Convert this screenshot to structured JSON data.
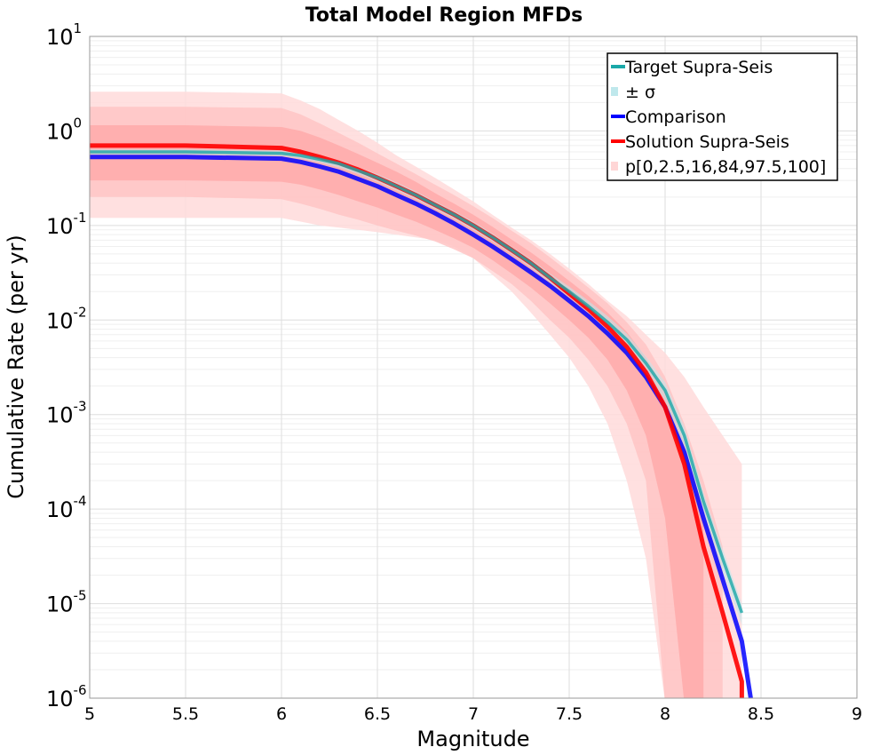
{
  "chart_data": {
    "type": "line",
    "title": "Total Model Region MFDs",
    "xlabel": "Magnitude",
    "ylabel": "Cumulative Rate (per yr)",
    "xlim": [
      5,
      9
    ],
    "ylim": [
      1e-06,
      10
    ],
    "yscale": "log",
    "grid": true,
    "legend_position": "top-right",
    "xticks": [
      "5",
      "5.5",
      "6",
      "6.5",
      "7",
      "7.5",
      "8",
      "8.5",
      "9"
    ],
    "yticks": [
      {
        "base": "10",
        "exp": "-6"
      },
      {
        "base": "10",
        "exp": "-5"
      },
      {
        "base": "10",
        "exp": "-4"
      },
      {
        "base": "10",
        "exp": "-3"
      },
      {
        "base": "10",
        "exp": "-2"
      },
      {
        "base": "10",
        "exp": "-1"
      },
      {
        "base": "10",
        "exp": "0"
      },
      {
        "base": "10",
        "exp": "1"
      }
    ],
    "legend": [
      {
        "label": "Target Supra-Seis",
        "color": "#1aa8a8",
        "kind": "line"
      },
      {
        "label": "± σ",
        "color": "#bfe8ec",
        "kind": "box"
      },
      {
        "label": "Comparison",
        "color": "#0000ff",
        "kind": "line"
      },
      {
        "label": "Solution Supra-Seis",
        "color": "#ff0000",
        "kind": "line"
      },
      {
        "label": "p[0,2.5,16,84,97.5,100]",
        "color": "#ffd6d6",
        "kind": "box"
      }
    ],
    "colors": {
      "target": "#1aa8a8",
      "sigma": "#bfe8ec",
      "comparison": "#0000ff",
      "solution": "#ff0000",
      "band_outer": "#ffdada",
      "band_mid": "#ffc4c4",
      "band_inner": "#ffaaaa",
      "grid_major": "#dedede",
      "grid_minor": "#efefef"
    },
    "series": [
      {
        "name": "Target Supra-Seis",
        "x": [
          5.0,
          5.5,
          6.0,
          6.1,
          6.2,
          6.3,
          6.4,
          6.5,
          6.6,
          6.7,
          6.8,
          6.9,
          7.0,
          7.1,
          7.2,
          7.3,
          7.4,
          7.5,
          7.6,
          7.7,
          7.8,
          7.9,
          8.0,
          8.1,
          8.2,
          8.3,
          8.4
        ],
        "y": [
          0.6,
          0.6,
          0.58,
          0.55,
          0.5,
          0.45,
          0.38,
          0.32,
          0.26,
          0.21,
          0.165,
          0.13,
          0.1,
          0.075,
          0.055,
          0.04,
          0.028,
          0.02,
          0.014,
          0.0095,
          0.0062,
          0.0035,
          0.0018,
          0.0006,
          0.00012,
          3e-05,
          8e-06
        ]
      },
      {
        "name": "Comparison",
        "x": [
          5.0,
          5.5,
          6.0,
          6.1,
          6.2,
          6.3,
          6.4,
          6.5,
          6.6,
          6.7,
          6.8,
          6.9,
          7.0,
          7.1,
          7.2,
          7.3,
          7.4,
          7.5,
          7.6,
          7.7,
          7.8,
          7.9,
          8.0,
          8.1,
          8.2,
          8.3,
          8.4,
          8.45
        ],
        "y": [
          0.53,
          0.53,
          0.51,
          0.47,
          0.42,
          0.37,
          0.31,
          0.26,
          0.21,
          0.17,
          0.135,
          0.105,
          0.08,
          0.06,
          0.044,
          0.032,
          0.023,
          0.016,
          0.011,
          0.0072,
          0.0045,
          0.0025,
          0.0012,
          0.0004,
          8e-05,
          1.8e-05,
          4e-06,
          8e-07
        ]
      },
      {
        "name": "Solution Supra-Seis",
        "x": [
          5.0,
          5.5,
          6.0,
          6.1,
          6.2,
          6.3,
          6.4,
          6.5,
          6.6,
          6.7,
          6.8,
          6.9,
          7.0,
          7.1,
          7.2,
          7.3,
          7.4,
          7.5,
          7.6,
          7.7,
          7.8,
          7.9,
          8.0,
          8.1,
          8.2,
          8.3,
          8.4,
          8.4
        ],
        "y": [
          0.7,
          0.7,
          0.66,
          0.6,
          0.53,
          0.46,
          0.39,
          0.32,
          0.26,
          0.21,
          0.165,
          0.13,
          0.1,
          0.075,
          0.055,
          0.04,
          0.028,
          0.019,
          0.013,
          0.0085,
          0.0052,
          0.0028,
          0.0012,
          0.0003,
          4e-05,
          8e-06,
          1.5e-06,
          8e-07
        ]
      }
    ],
    "bands": [
      {
        "name": "p0-100",
        "x": [
          5.0,
          5.5,
          6.0,
          6.1,
          6.2,
          6.3,
          6.4,
          6.5,
          6.6,
          6.7,
          6.8,
          6.9,
          7.0,
          7.1,
          7.2,
          7.3,
          7.4,
          7.5,
          7.6,
          7.7,
          7.8,
          7.9,
          8.0,
          8.1,
          8.2,
          8.3,
          8.4
        ],
        "lower": [
          0.12,
          0.12,
          0.12,
          0.11,
          0.1,
          0.095,
          0.09,
          0.085,
          0.08,
          0.075,
          0.07,
          0.06,
          0.045,
          0.03,
          0.02,
          0.012,
          0.007,
          0.004,
          0.002,
          0.0008,
          0.0002,
          3e-05,
          8e-07,
          8e-07,
          8e-07,
          8e-07,
          8e-07
        ],
        "upper": [
          2.6,
          2.6,
          2.5,
          2.1,
          1.7,
          1.3,
          1.0,
          0.75,
          0.55,
          0.42,
          0.32,
          0.24,
          0.18,
          0.13,
          0.095,
          0.07,
          0.05,
          0.035,
          0.024,
          0.016,
          0.011,
          0.007,
          0.0045,
          0.0025,
          0.0012,
          0.0006,
          0.0003
        ]
      },
      {
        "name": "p2.5-97.5",
        "x": [
          5.0,
          5.5,
          6.0,
          6.1,
          6.2,
          6.3,
          6.4,
          6.5,
          6.6,
          6.7,
          6.8,
          6.9,
          7.0,
          7.1,
          7.2,
          7.3,
          7.4,
          7.5,
          7.6,
          7.7,
          7.8,
          7.9,
          8.0,
          8.1,
          8.2,
          8.3
        ],
        "lower": [
          0.2,
          0.2,
          0.19,
          0.17,
          0.15,
          0.13,
          0.115,
          0.1,
          0.088,
          0.078,
          0.068,
          0.056,
          0.045,
          0.033,
          0.024,
          0.016,
          0.01,
          0.0065,
          0.0038,
          0.002,
          0.0008,
          0.0002,
          8e-07,
          8e-07,
          8e-07,
          8e-07
        ],
        "upper": [
          1.8,
          1.8,
          1.75,
          1.5,
          1.2,
          0.95,
          0.75,
          0.58,
          0.45,
          0.35,
          0.27,
          0.21,
          0.16,
          0.12,
          0.088,
          0.065,
          0.046,
          0.032,
          0.022,
          0.015,
          0.0095,
          0.0055,
          0.0025,
          0.0008,
          0.0002,
          4e-05
        ]
      },
      {
        "name": "p16-84",
        "x": [
          5.0,
          5.5,
          6.0,
          6.1,
          6.2,
          6.3,
          6.4,
          6.5,
          6.6,
          6.7,
          6.8,
          6.9,
          7.0,
          7.1,
          7.2,
          7.3,
          7.4,
          7.5,
          7.6,
          7.7,
          7.8,
          7.9,
          8.0,
          8.1,
          8.2
        ],
        "lower": [
          0.3,
          0.3,
          0.29,
          0.27,
          0.24,
          0.21,
          0.18,
          0.155,
          0.13,
          0.11,
          0.09,
          0.073,
          0.058,
          0.043,
          0.031,
          0.022,
          0.015,
          0.01,
          0.0065,
          0.0038,
          0.0018,
          0.0006,
          8e-05,
          8e-07,
          8e-07
        ],
        "upper": [
          1.15,
          1.15,
          1.1,
          1.0,
          0.85,
          0.7,
          0.57,
          0.46,
          0.37,
          0.29,
          0.22,
          0.17,
          0.13,
          0.097,
          0.071,
          0.052,
          0.037,
          0.026,
          0.018,
          0.012,
          0.0075,
          0.004,
          0.0018,
          0.0005,
          8e-05
        ]
      },
      {
        "name": "sigma",
        "x": [
          5.0,
          5.5,
          6.0,
          6.1,
          6.2,
          6.3,
          6.4,
          6.5,
          6.6,
          6.7,
          6.8,
          6.9,
          7.0,
          7.1,
          7.2,
          7.3,
          7.4,
          7.5,
          7.6,
          7.7,
          7.8,
          7.9,
          8.0,
          8.1,
          8.2,
          8.3,
          8.4
        ],
        "lower": [
          0.56,
          0.56,
          0.54,
          0.51,
          0.46,
          0.41,
          0.35,
          0.29,
          0.235,
          0.19,
          0.15,
          0.118,
          0.09,
          0.068,
          0.05,
          0.036,
          0.025,
          0.0175,
          0.012,
          0.008,
          0.0052,
          0.0029,
          0.0014,
          0.00045,
          9e-05,
          2.2e-05,
          6e-06
        ],
        "upper": [
          0.64,
          0.64,
          0.62,
          0.59,
          0.54,
          0.49,
          0.41,
          0.35,
          0.285,
          0.23,
          0.18,
          0.142,
          0.11,
          0.082,
          0.06,
          0.044,
          0.031,
          0.0225,
          0.016,
          0.011,
          0.0072,
          0.0041,
          0.0022,
          0.00075,
          0.00015,
          3.8e-05,
          1e-05
        ]
      }
    ]
  }
}
